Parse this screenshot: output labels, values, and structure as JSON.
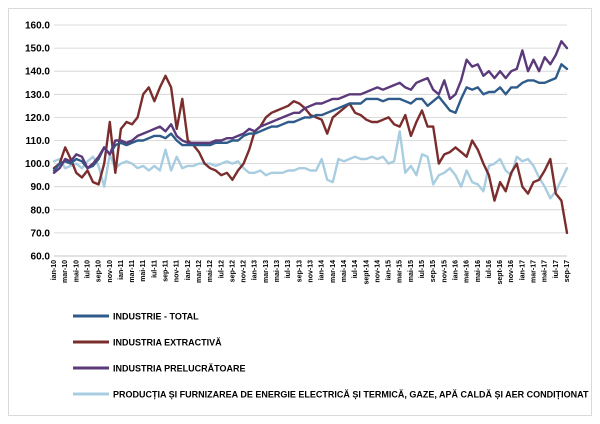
{
  "chart_data": {
    "type": "line",
    "title": "",
    "xlabel": "",
    "ylabel": "",
    "ylim": [
      60,
      160
    ],
    "yticks": [
      "160.0",
      "150.0",
      "140.0",
      "130.0",
      "120.0",
      "110.0",
      "100.0",
      "90.0",
      "80.0",
      "70.0",
      "60.0"
    ],
    "ytick_values": [
      160,
      150,
      140,
      130,
      120,
      110,
      100,
      90,
      80,
      70,
      60
    ],
    "x_start_month_index": 0,
    "n_points": 93,
    "x_tick_labels": [
      "ian-10",
      "mar-10",
      "mai-10",
      "iul-10",
      "sep-10",
      "nov-10",
      "ian-11",
      "mar-11",
      "mai-11",
      "iul-11",
      "sep-11",
      "nov-11",
      "ian-12",
      "mar-12",
      "mai-12",
      "iul-12",
      "sep-12",
      "nov-12",
      "ian-13",
      "mar-13",
      "mai-13",
      "iul-13",
      "sep-13",
      "nov-13",
      "ian-14",
      "mar-14",
      "mai-14",
      "iul-14",
      "sept-14",
      "nov-14",
      "ian-15",
      "mar-15",
      "mai-15",
      "iul-15",
      "sep-15",
      "nov-15",
      "ian-16",
      "mar-16",
      "mai-16",
      "iul-16",
      "sept-16",
      "nov-16",
      "ian-17",
      "mar-17",
      "mai-17",
      "iul-17",
      "sep-17"
    ],
    "grid": true,
    "legend_position": "bottom",
    "series": [
      {
        "name": "INDUSTRIE - TOTAL",
        "color": "#2f5b8a",
        "values": [
          97,
          100,
          101,
          100,
          102,
          101,
          98,
          99,
          102,
          107,
          104,
          108,
          109,
          108,
          109,
          110,
          110,
          111,
          112,
          112,
          111,
          113,
          110,
          108,
          108,
          108,
          108,
          108,
          108,
          109,
          109,
          109,
          110,
          110,
          112,
          113,
          113,
          114,
          115,
          116,
          116,
          117,
          118,
          118,
          119,
          120,
          120,
          121,
          121,
          122,
          123,
          124,
          125,
          126,
          126,
          126,
          128,
          128,
          128,
          127,
          128,
          128,
          128,
          127,
          126,
          128,
          128,
          125,
          127,
          129,
          126,
          123,
          122,
          128,
          133,
          132,
          133,
          130,
          131,
          131,
          133,
          130,
          133,
          133,
          135,
          136,
          136,
          135,
          135,
          136,
          137,
          143,
          141
        ]
      },
      {
        "name": "INDUSTRIA EXTRACTIVĂ",
        "color": "#7b2d2d",
        "values": [
          98,
          100,
          107,
          102,
          96,
          94,
          97,
          92,
          91,
          100,
          118,
          96,
          115,
          118,
          117,
          120,
          130,
          133,
          127,
          133,
          138,
          133,
          115,
          128,
          110,
          108,
          105,
          100,
          98,
          97,
          95,
          96,
          93,
          97,
          100,
          106,
          114,
          116,
          120,
          122,
          123,
          124,
          125,
          127,
          126,
          124,
          121,
          120,
          119,
          113,
          120,
          122,
          124,
          126,
          122,
          121,
          119,
          118,
          118,
          119,
          120,
          117,
          116,
          121,
          112,
          118,
          123,
          116,
          116,
          100,
          104,
          105,
          107,
          105,
          103,
          110,
          106,
          100,
          95,
          84,
          92,
          88,
          96,
          100,
          90,
          87,
          92,
          93,
          97,
          102,
          87,
          84,
          70
        ]
      },
      {
        "name": "INDUSTRIA PRELUCRĂTOARE",
        "color": "#5b3a7a",
        "values": [
          96,
          98,
          102,
          101,
          104,
          103,
          98,
          100,
          103,
          107,
          104,
          110,
          110,
          109,
          110,
          112,
          113,
          114,
          115,
          116,
          114,
          117,
          112,
          110,
          109,
          109,
          109,
          109,
          109,
          110,
          110,
          111,
          111,
          112,
          113,
          115,
          114,
          116,
          117,
          118,
          119,
          120,
          121,
          122,
          122,
          124,
          125,
          126,
          126,
          127,
          128,
          128,
          129,
          130,
          130,
          130,
          131,
          132,
          133,
          132,
          133,
          134,
          135,
          133,
          132,
          135,
          136,
          137,
          132,
          130,
          136,
          128,
          130,
          136,
          145,
          142,
          143,
          138,
          140,
          137,
          140,
          137,
          140,
          141,
          149,
          140,
          145,
          140,
          146,
          143,
          147,
          153,
          150
        ]
      },
      {
        "name": "PRODUCȚIA ȘI FURNIZAREA DE ENERGIE ELECTRICĂ ȘI TERMICĂ, GAZE, APĂ CALDĂ ȘI AER CONDIȚIONAT",
        "color": "#a9cde0",
        "values": [
          101,
          102,
          98,
          99,
          100,
          98,
          101,
          103,
          99,
          90,
          104,
          98,
          100,
          101,
          100,
          98,
          99,
          97,
          99,
          97,
          106,
          97,
          103,
          98,
          99,
          99,
          100,
          100,
          100,
          99,
          100,
          101,
          100,
          101,
          98,
          96,
          96,
          97,
          95,
          96,
          96,
          96,
          97,
          97,
          98,
          98,
          97,
          97,
          102,
          93,
          92,
          102,
          101,
          102,
          103,
          102,
          102,
          103,
          102,
          103,
          100,
          101,
          114,
          96,
          99,
          95,
          104,
          103,
          91,
          95,
          96,
          98,
          95,
          90,
          97,
          92,
          91,
          88,
          99,
          100,
          102,
          97,
          95,
          103,
          101,
          102,
          99,
          94,
          90,
          85,
          88,
          93,
          98
        ]
      }
    ]
  }
}
